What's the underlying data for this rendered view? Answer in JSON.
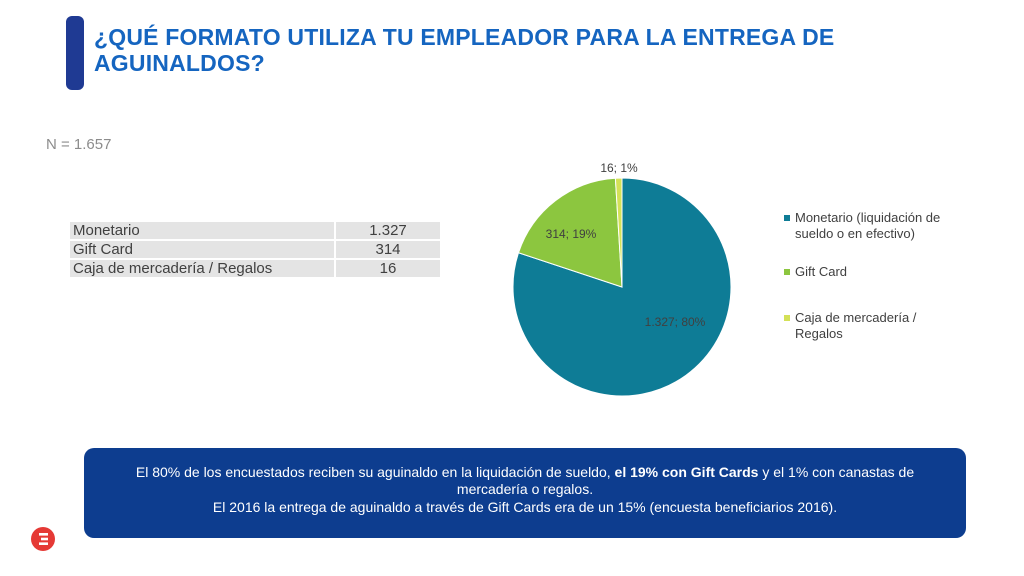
{
  "title": "¿QUÉ FORMATO UTILIZA TU EMPLEADOR PARA LA ENTREGA DE AGUINALDOS?",
  "sample": "N = 1.657",
  "table": [
    {
      "label": "Monetario",
      "value": "1.327"
    },
    {
      "label": "Gift Card",
      "value": "314"
    },
    {
      "label": "Caja de mercadería / Regalos",
      "value": "16"
    }
  ],
  "chart_data": {
    "type": "pie",
    "slices": [
      {
        "name": "Monetario (liquidación de sueldo o en efectivo)",
        "value": 1327,
        "label": "1.327; 80%",
        "color": "#0e7c96"
      },
      {
        "name": "Gift Card",
        "value": 314,
        "label": "314; 19%",
        "color": "#8cc63f"
      },
      {
        "name": "Caja de mercadería / Regalos",
        "value": 16,
        "label": "16; 1%",
        "color": "#d4e157"
      }
    ],
    "legend_position": "right"
  },
  "callout": {
    "line1_pre": "El 80% de los encuestados reciben su aguinaldo en la liquidación de sueldo, ",
    "line1_bold": "el 19% con Gift Cards",
    "line1_post": " y el 1% con canastas de mercadería o regalos.",
    "line2": "El 2016 la entrega de aguinaldo a través de Gift Cards era de un 15% (encuesta beneficiarios 2016)."
  },
  "colors": {
    "title": "#1565c0",
    "callout_bg": "#0d3d8f",
    "logo": "#e53935"
  }
}
